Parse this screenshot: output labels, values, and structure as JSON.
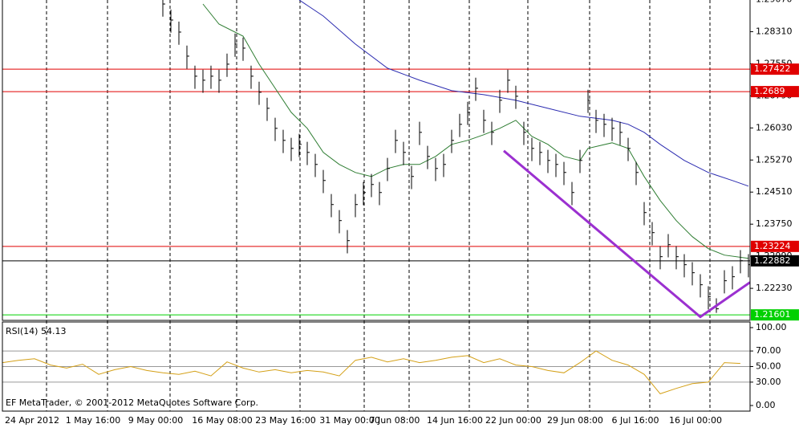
{
  "chart_data": {
    "type": "ohlc",
    "xlim": [
      0,
      93.2
    ],
    "xticks": [
      {
        "value": 5.5,
        "label": "24 Apr 2012"
      },
      {
        "value": 13.1,
        "label": "1 May 16:00"
      },
      {
        "value": 20.9,
        "label": "9 May 00:00"
      },
      {
        "value": 29.2,
        "label": "16 May 08:00"
      },
      {
        "value": 37.1,
        "label": "23 May 16:00"
      },
      {
        "value": 45.1,
        "label": "31 May 00:00"
      },
      {
        "value": 50.7,
        "label": "7 Jun 08:00"
      },
      {
        "value": 58.2,
        "label": "14 Jun 16:00"
      },
      {
        "value": 65.5,
        "label": "22 Jun 00:00"
      },
      {
        "value": 73.2,
        "label": "29 Jun 08:00"
      },
      {
        "value": 80.7,
        "label": "6 Jul 16:00"
      },
      {
        "value": 88.2,
        "label": "16 Jul 00:00"
      }
    ],
    "ylim": [
      1.2149,
      1.2906
    ],
    "yticks": [
      {
        "value": 1.2907,
        "label": "1.29070"
      },
      {
        "value": 1.2831,
        "label": "1.28310"
      },
      {
        "value": 1.2755,
        "label": "1.27550"
      },
      {
        "value": 1.2679,
        "label": "1.26790"
      },
      {
        "value": 1.2603,
        "label": "1.26030"
      },
      {
        "value": 1.2527,
        "label": "1.25270"
      },
      {
        "value": 1.2451,
        "label": "1.24510"
      },
      {
        "value": 1.2375,
        "label": "1.23750"
      },
      {
        "value": 1.2299,
        "label": "1.22990"
      },
      {
        "value": 1.2223,
        "label": "1.22230"
      }
    ],
    "bar_color": "#000000",
    "bars": {
      "x": [
        20,
        21,
        22,
        23,
        24,
        25,
        26,
        27,
        28,
        29,
        30,
        31,
        32,
        33,
        34,
        35,
        36,
        37,
        38,
        39,
        40,
        41,
        42,
        43,
        44,
        45,
        46,
        47,
        48,
        49,
        50,
        51,
        52,
        53,
        54,
        55,
        56,
        57,
        58,
        59,
        60,
        61,
        62,
        63,
        64,
        65,
        66,
        67,
        68,
        69,
        70,
        71,
        72,
        73,
        74,
        75,
        76,
        77,
        78,
        79,
        80,
        81,
        82,
        83,
        84,
        85,
        86,
        87,
        88,
        89,
        90,
        91,
        92,
        93
      ],
      "high": [
        1.29215,
        1.28835,
        1.2855,
        1.2798,
        1.27505,
        1.2741,
        1.27505,
        1.2741,
        1.2779,
        1.28265,
        1.2817,
        1.27505,
        1.27125,
        1.26745,
        1.2627,
        1.25985,
        1.25795,
        1.2589,
        1.257,
        1.25415,
        1.25035,
        1.24465,
        1.24085,
        1.2361,
        1.24465,
        1.2475,
        1.2494,
        1.2475,
        1.2532,
        1.25985,
        1.257,
        1.2513,
        1.26175,
        1.25605,
        1.2532,
        1.25415,
        1.25985,
        1.26365,
        1.2665,
        1.2722,
        1.2646,
        1.26175,
        1.26935,
        1.2741,
        1.2703,
        1.26175,
        1.25795,
        1.257,
        1.2551,
        1.25415,
        1.25225,
        1.2475,
        1.2551,
        1.26935,
        1.2646,
        1.26365,
        1.2627,
        1.26175,
        1.25795,
        1.25225,
        1.24275,
        1.238,
        1.2323,
        1.23515,
        1.2323,
        1.2304,
        1.2285,
        1.22565,
        1.2228,
        1.21995,
        1.2266,
        1.22755,
        1.23135,
        1.2304
      ],
      "low": [
        1.28665,
        1.28285,
        1.28,
        1.2743,
        1.26955,
        1.2686,
        1.26955,
        1.2686,
        1.2724,
        1.27715,
        1.2762,
        1.26955,
        1.26575,
        1.26195,
        1.2572,
        1.25435,
        1.25245,
        1.2534,
        1.2515,
        1.24865,
        1.24485,
        1.23915,
        1.23535,
        1.2306,
        1.23915,
        1.242,
        1.2439,
        1.242,
        1.2477,
        1.25435,
        1.2515,
        1.2458,
        1.25625,
        1.25055,
        1.2477,
        1.24865,
        1.25435,
        1.25815,
        1.261,
        1.2667,
        1.2591,
        1.25625,
        1.26385,
        1.2686,
        1.2648,
        1.25625,
        1.25245,
        1.2515,
        1.2496,
        1.24865,
        1.24675,
        1.242,
        1.2496,
        1.26385,
        1.2591,
        1.25815,
        1.2572,
        1.25625,
        1.25245,
        1.24675,
        1.23725,
        1.2325,
        1.2268,
        1.22965,
        1.2268,
        1.2249,
        1.223,
        1.22015,
        1.2173,
        1.2165,
        1.2211,
        1.22205,
        1.22585,
        1.2249
      ],
      "close": [
        1.28965,
        1.28585,
        1.283,
        1.2773,
        1.27255,
        1.2716,
        1.27255,
        1.2716,
        1.2754,
        1.28015,
        1.2792,
        1.27255,
        1.26875,
        1.26495,
        1.2602,
        1.25735,
        1.25545,
        1.2564,
        1.2545,
        1.25165,
        1.24785,
        1.24215,
        1.23835,
        1.2336,
        1.24215,
        1.245,
        1.2469,
        1.245,
        1.2507,
        1.25735,
        1.2545,
        1.2488,
        1.25925,
        1.25355,
        1.2507,
        1.25165,
        1.25735,
        1.26115,
        1.264,
        1.2697,
        1.2621,
        1.25925,
        1.26685,
        1.2716,
        1.2678,
        1.25925,
        1.25545,
        1.2545,
        1.2526,
        1.25165,
        1.24975,
        1.245,
        1.2526,
        1.26685,
        1.2621,
        1.26115,
        1.2602,
        1.25925,
        1.25545,
        1.24975,
        1.24025,
        1.2355,
        1.2298,
        1.23265,
        1.2298,
        1.2279,
        1.226,
        1.22315,
        1.2203,
        1.21745,
        1.2241,
        1.22505,
        1.22885,
        1.2279
      ]
    },
    "moving_averages": [
      {
        "color": "#2e7d32",
        "x": [
          25,
          27,
          30,
          32,
          34,
          36,
          38,
          40,
          42,
          44,
          46,
          48,
          50,
          52,
          54,
          56,
          58,
          60,
          62,
          64,
          66,
          68,
          70,
          72,
          73,
          76,
          78,
          80,
          82,
          84,
          86,
          88,
          90,
          93
        ],
        "values": [
          1.28965,
          1.2849,
          1.28205,
          1.2754,
          1.2697,
          1.264,
          1.2602,
          1.2545,
          1.25165,
          1.24975,
          1.2488,
          1.2507,
          1.25165,
          1.25165,
          1.25355,
          1.2564,
          1.25735,
          1.25868,
          1.2602,
          1.2621,
          1.2583,
          1.2564,
          1.25355,
          1.2526,
          1.25545,
          1.25678,
          1.25545,
          1.2488,
          1.2431,
          1.23835,
          1.23455,
          1.2317,
          1.23018,
          1.22942
        ]
      },
      {
        "color": "#2b2bb0",
        "x": [
          37,
          40,
          44,
          48,
          52,
          56,
          60,
          64,
          68,
          72,
          76,
          78,
          80,
          82,
          85,
          88,
          91,
          93
        ],
        "values": [
          1.2906,
          1.2868,
          1.28015,
          1.27445,
          1.2716,
          1.26913,
          1.26818,
          1.26685,
          1.26495,
          1.26305,
          1.2621,
          1.26115,
          1.25925,
          1.2564,
          1.2526,
          1.24975,
          1.24785,
          1.24652
        ]
      }
    ],
    "levels": [
      {
        "value": 1.27422,
        "color": "#e00000"
      },
      {
        "value": 1.2689,
        "color": "#e00000"
      },
      {
        "value": 1.23224,
        "color": "#e00000"
      },
      {
        "value": 1.22882,
        "color": "#000000"
      },
      {
        "value": 1.21601,
        "color": "#00d000"
      }
    ],
    "trendline": {
      "color": "#9b30d0",
      "x": [
        62.5,
        87,
        93.2
      ],
      "values": [
        1.25488,
        1.21555,
        1.22372
      ]
    },
    "footer": "EF MetaTrader, © 2001-2012 MetaQuotes Software Corp.",
    "indicator": {
      "type": "line",
      "label": "RSI(14) 54.13",
      "color": "#d4a017",
      "ylim": [
        0,
        100
      ],
      "yticks": [
        {
          "value": 100,
          "label": "100.00"
        },
        {
          "value": 70,
          "label": "70.00"
        },
        {
          "value": 50,
          "label": "50.00"
        },
        {
          "value": 30,
          "label": "30.00"
        },
        {
          "value": 0,
          "label": "0.00"
        }
      ],
      "x": [
        0,
        2,
        4,
        6,
        8,
        10,
        12,
        14,
        16,
        18,
        20,
        22,
        24,
        26,
        28,
        30,
        32,
        34,
        36,
        38,
        40,
        42,
        44,
        46,
        48,
        50,
        52,
        54,
        56,
        58,
        60,
        62,
        64,
        66,
        68,
        70,
        72,
        74,
        76,
        78,
        80,
        82,
        84,
        86,
        88,
        90,
        92
      ],
      "values": [
        55,
        58,
        60,
        52,
        48,
        53,
        40,
        46,
        50,
        45,
        42,
        40,
        44,
        38,
        56,
        48,
        43,
        46,
        42,
        45,
        43,
        38,
        58,
        62,
        56,
        60,
        55,
        58,
        62,
        64,
        55,
        60,
        52,
        50,
        45,
        42,
        55,
        70,
        58,
        52,
        40,
        15,
        22,
        28,
        30,
        55,
        54
      ]
    }
  }
}
